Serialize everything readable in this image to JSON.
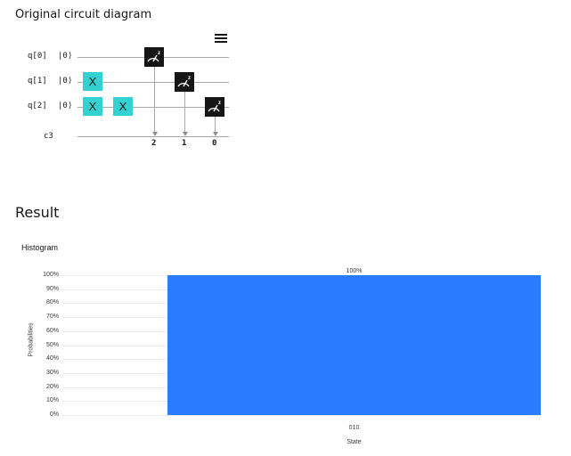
{
  "circuit": {
    "title": "Original circuit diagram",
    "qubits": [
      {
        "label": "q[0]",
        "state": "|0⟩"
      },
      {
        "label": "q[1]",
        "state": "|0⟩"
      },
      {
        "label": "q[2]",
        "state": "|0⟩"
      }
    ],
    "classical_register": "c3",
    "gate_x_label": "X",
    "classical_bits": [
      "2",
      "1",
      "0"
    ]
  },
  "result": {
    "title": "Result"
  },
  "histogram": {
    "title": "Histogram"
  },
  "chart_data": {
    "type": "bar",
    "categories": [
      "010"
    ],
    "values": [
      100
    ],
    "data_labels": [
      "100%"
    ],
    "ylabel": "Probabilities",
    "xlabel": "State",
    "ylim": [
      0,
      100
    ],
    "yticks": [
      "0%",
      "10%",
      "20%",
      "30%",
      "40%",
      "50%",
      "60%",
      "70%",
      "80%",
      "90%",
      "100%"
    ],
    "grid": true,
    "colors": {
      "bar": "#2a7bff"
    }
  }
}
